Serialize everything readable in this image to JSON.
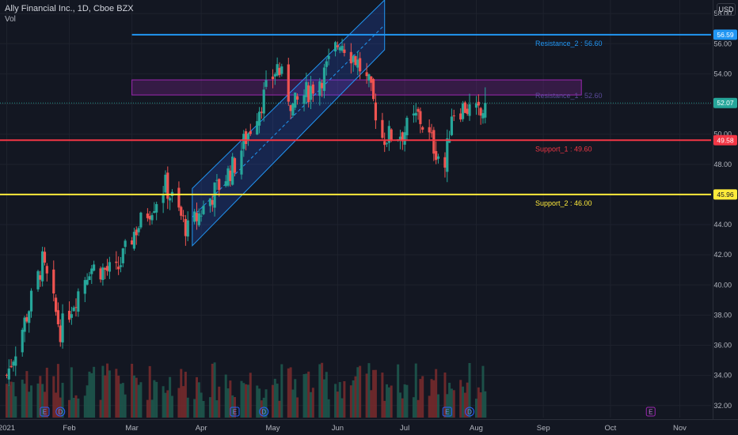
{
  "header": {
    "title": "Ally Financial Inc., 1D, Cboe BZX",
    "vol_label": "Vol",
    "currency": "USD"
  },
  "colors": {
    "background": "#131722",
    "up": "#26a69a",
    "down": "#ef5350",
    "resistance_2": "#2196f3",
    "resistance_1": "#9c27b0",
    "support_1": "#f23645",
    "support_2": "#ffeb3b",
    "channel": "#2962ff",
    "axis_text": "#b2b5be"
  },
  "chart_data": {
    "type": "candlestick",
    "symbol": "Ally Financial Inc., 1D, Cboe BZX",
    "yaxis": {
      "ticks": [
        32.0,
        34.0,
        36.0,
        38.0,
        40.0,
        42.0,
        44.0,
        46.0,
        48.0,
        50.0,
        52.0,
        54.0,
        56.0,
        58.0
      ],
      "min": 31.2,
      "max": 58.9
    },
    "xaxis": {
      "ticks": [
        {
          "label": "2021",
          "date": "2021-01-04"
        },
        {
          "label": "Feb",
          "date": "2021-02-01"
        },
        {
          "label": "Mar",
          "date": "2021-03-01"
        },
        {
          "label": "Apr",
          "date": "2021-04-01"
        },
        {
          "label": "May",
          "date": "2021-05-03"
        },
        {
          "label": "Jun",
          "date": "2021-06-01"
        },
        {
          "label": "Jul",
          "date": "2021-07-01"
        },
        {
          "label": "Aug",
          "date": "2021-08-02"
        },
        {
          "label": "Sep",
          "date": "2021-09-01"
        },
        {
          "label": "Oct",
          "date": "2021-10-01"
        },
        {
          "label": "Nov",
          "date": "2021-11-01"
        }
      ],
      "min": "2021-01-01",
      "max": "2021-11-15"
    },
    "close_anchors": [
      {
        "date": "2021-01-04",
        "close": 34.0
      },
      {
        "date": "2021-01-13",
        "close": 38.0
      },
      {
        "date": "2021-01-20",
        "close": 41.5
      },
      {
        "date": "2021-01-28",
        "close": 37.0
      },
      {
        "date": "2021-02-10",
        "close": 41.2
      },
      {
        "date": "2021-02-22",
        "close": 40.8
      },
      {
        "date": "2021-03-02",
        "close": 43.5
      },
      {
        "date": "2021-03-16",
        "close": 46.6
      },
      {
        "date": "2021-03-26",
        "close": 43.6
      },
      {
        "date": "2021-04-07",
        "close": 46.2
      },
      {
        "date": "2021-04-16",
        "close": 48.0
      },
      {
        "date": "2021-04-26",
        "close": 51.5
      },
      {
        "date": "2021-05-05",
        "close": 54.5
      },
      {
        "date": "2021-05-12",
        "close": 51.8
      },
      {
        "date": "2021-05-26",
        "close": 54.0
      },
      {
        "date": "2021-06-02",
        "close": 56.3
      },
      {
        "date": "2021-06-09",
        "close": 55.0
      },
      {
        "date": "2021-06-15",
        "close": 53.2
      },
      {
        "date": "2021-06-21",
        "close": 49.8
      },
      {
        "date": "2021-06-30",
        "close": 50.1
      },
      {
        "date": "2021-07-07",
        "close": 51.2
      },
      {
        "date": "2021-07-13",
        "close": 49.5
      },
      {
        "date": "2021-07-19",
        "close": 47.8
      },
      {
        "date": "2021-07-22",
        "close": 51.5
      },
      {
        "date": "2021-07-28",
        "close": 51.8
      },
      {
        "date": "2021-08-04",
        "close": 51.2
      },
      {
        "date": "2021-08-06",
        "close": 52.07
      }
    ],
    "last_price": 52.07,
    "levels": [
      {
        "name": "Resistance_2",
        "value": 56.6,
        "price_tag": "56.59",
        "label": "Resistance_2 : 56.60",
        "start": "2021-03-01",
        "color": "#2196f3"
      },
      {
        "name": "Support_1",
        "value": 49.6,
        "price_tag": "49.58",
        "label": "Support_1 : 49.60",
        "start": "2021-01-01",
        "color": "#f23645"
      },
      {
        "name": "Support_2",
        "value": 46.0,
        "price_tag": "45.96",
        "label": "Support_2 : 46.00",
        "start": "2021-01-01",
        "color": "#ffeb3b"
      }
    ],
    "zone": {
      "name": "Resistance_1",
      "low": 52.6,
      "high": 53.6,
      "label": "Resistance_1 : 52.60",
      "start": "2021-03-01",
      "end": "2021-09-18",
      "color": "#9c27b0"
    },
    "channel": {
      "start": "2021-03-28",
      "end": "2021-06-22",
      "upper_start": 46.4,
      "upper_end": 58.9,
      "lower_start": 42.6,
      "lower_end": 55.6
    },
    "events": [
      {
        "type": "E",
        "date": "2021-01-21"
      },
      {
        "type": "D",
        "date": "2021-01-28"
      },
      {
        "type": "E",
        "date": "2021-04-16"
      },
      {
        "type": "D",
        "date": "2021-04-29"
      },
      {
        "type": "E",
        "date": "2021-07-20"
      },
      {
        "type": "D",
        "date": "2021-07-30"
      },
      {
        "type": "E",
        "date": "2021-10-19"
      }
    ]
  }
}
